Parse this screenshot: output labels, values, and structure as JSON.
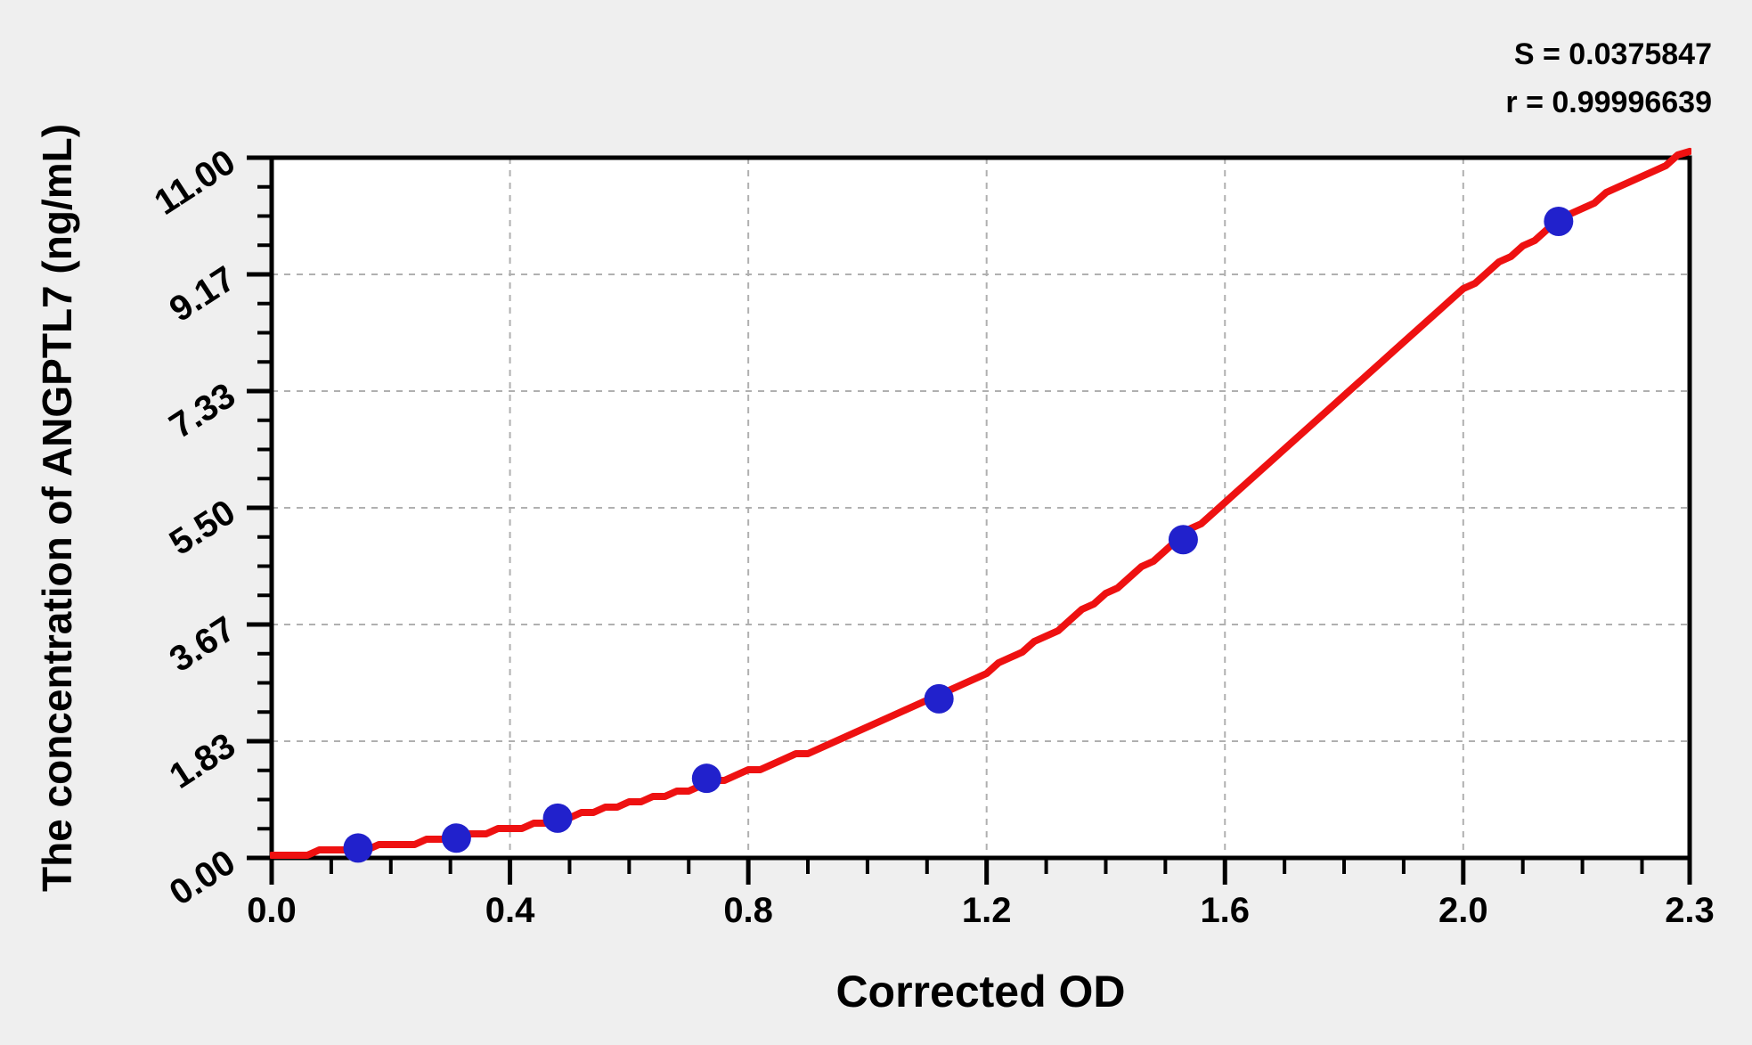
{
  "page": {
    "background": "#efefef"
  },
  "stats": {
    "s_text": "S = 0.0375847",
    "r_text": "r = 0.99996639",
    "S": "0.0375847",
    "r": "0.99996639"
  },
  "chart_data": {
    "type": "scatter",
    "title": "",
    "xlabel": "Corrected OD",
    "ylabel": "The concentration of ANGPTL7 (ng/mL)",
    "legend": "none",
    "grid": "dashed major gridlines",
    "x_axis": {
      "min": 0,
      "max_label_value": 2.3,
      "scale_max": 2.38,
      "major_ticks": [
        0.0,
        0.4,
        0.8,
        1.2,
        1.6,
        2.0
      ],
      "major_labels": [
        "0.0",
        "0.4",
        "0.8",
        "1.2",
        "1.6",
        "2.0"
      ],
      "end_tick_label": "2.3",
      "minor_step": 0.1,
      "grid_at": [
        0.4,
        0.8,
        1.2,
        1.6,
        2.0
      ]
    },
    "y_axis": {
      "min": 0,
      "max": 11,
      "major_labels": [
        "0.00",
        "1.83",
        "3.67",
        "5.50",
        "7.33",
        "9.17",
        "11.00"
      ],
      "major_values": [
        0,
        1.8333,
        3.6667,
        5.5,
        7.3333,
        9.1667,
        11
      ],
      "minor_divisions_per_major": 4,
      "grid_at": [
        1.8333,
        3.6667,
        5.5,
        7.3333,
        9.1667
      ]
    },
    "points": [
      {
        "od": 0.145,
        "conc": 0.156
      },
      {
        "od": 0.31,
        "conc": 0.312
      },
      {
        "od": 0.48,
        "conc": 0.625
      },
      {
        "od": 0.73,
        "conc": 1.25
      },
      {
        "od": 1.12,
        "conc": 2.5
      },
      {
        "od": 1.53,
        "conc": 5.0
      },
      {
        "od": 2.16,
        "conc": 10.0
      }
    ],
    "fit_curve_samples": [
      [
        0.0,
        0.02
      ],
      [
        0.1,
        0.1
      ],
      [
        0.2,
        0.2
      ],
      [
        0.3,
        0.31
      ],
      [
        0.4,
        0.46
      ],
      [
        0.5,
        0.64
      ],
      [
        0.6,
        0.85
      ],
      [
        0.7,
        1.08
      ],
      [
        0.8,
        1.35
      ],
      [
        0.9,
        1.67
      ],
      [
        1.0,
        2.03
      ],
      [
        1.1,
        2.44
      ],
      [
        1.2,
        2.92
      ],
      [
        1.3,
        3.48
      ],
      [
        1.4,
        4.12
      ],
      [
        1.5,
        4.82
      ],
      [
        1.6,
        5.58
      ],
      [
        1.7,
        6.4
      ],
      [
        1.8,
        7.26
      ],
      [
        1.9,
        8.12
      ],
      [
        2.0,
        8.92
      ],
      [
        2.1,
        9.62
      ],
      [
        2.2,
        10.22
      ],
      [
        2.3,
        10.72
      ],
      [
        2.38,
        11.1
      ]
    ],
    "colors": {
      "curve": "#ee1111",
      "points": "#2121cc",
      "grid": "#b0b0b0",
      "frame": "#000000",
      "plot_bg": "#ffffff",
      "page_bg": "#efefef"
    }
  }
}
